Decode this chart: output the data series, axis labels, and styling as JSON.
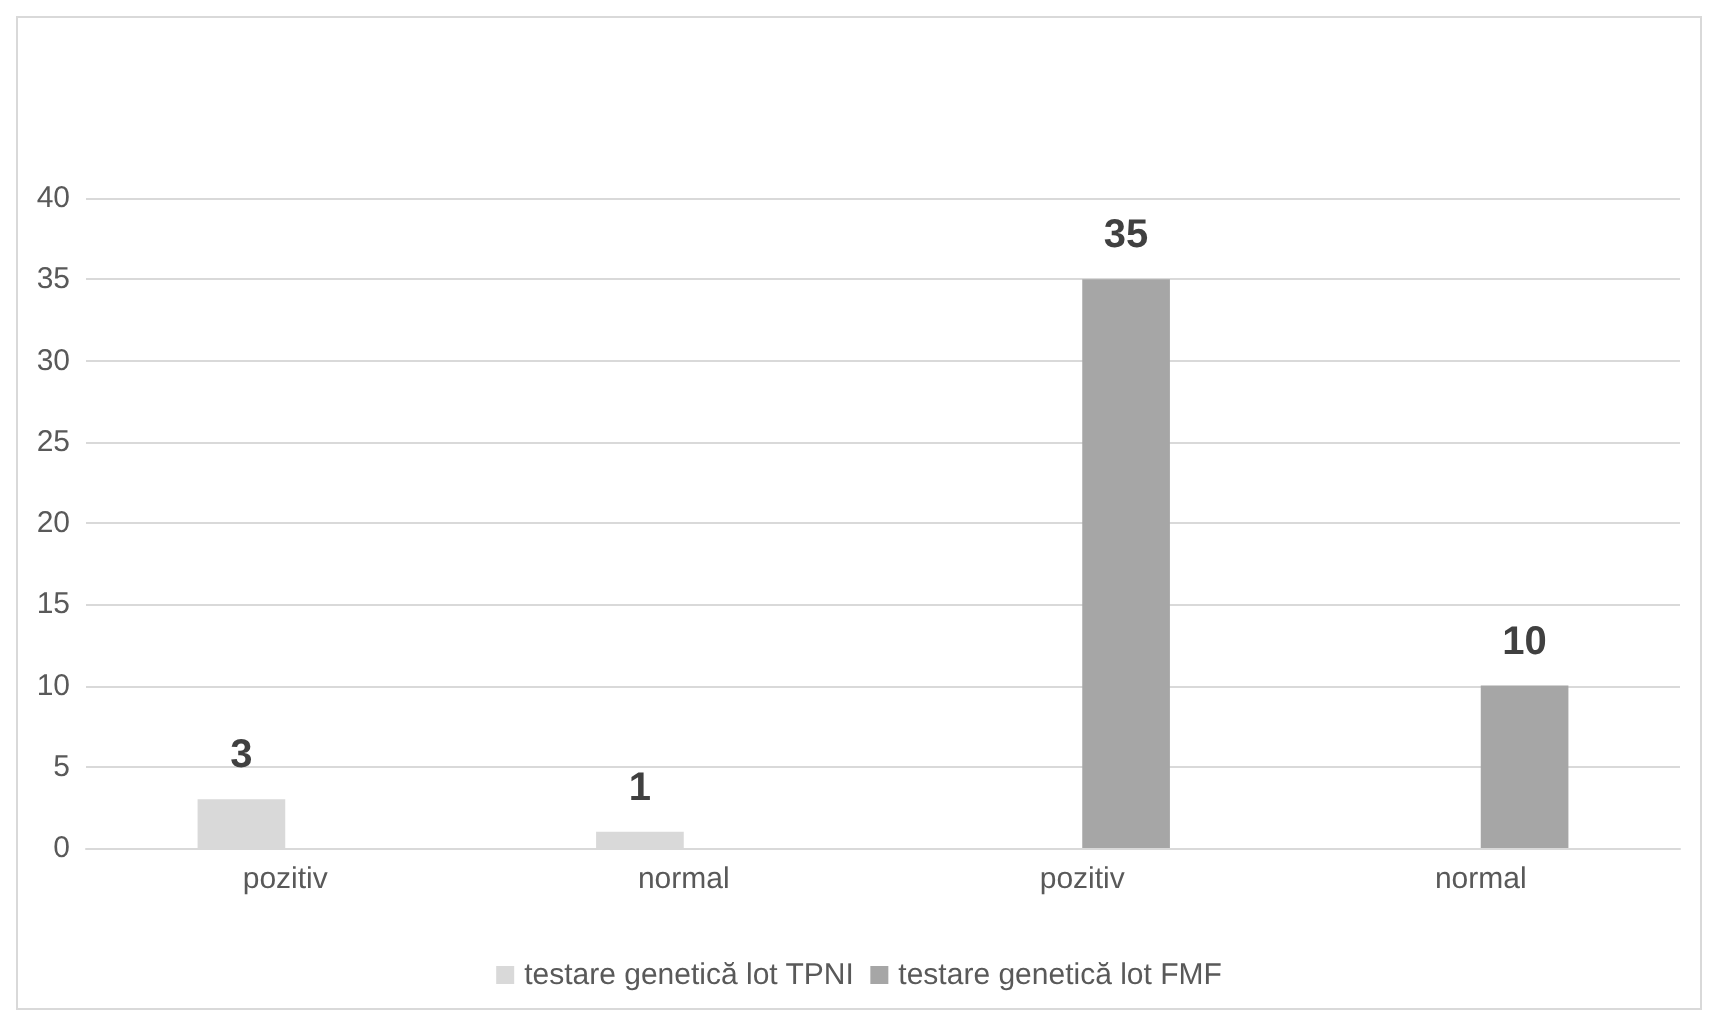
{
  "chart_data": {
    "type": "bar",
    "categories": [
      "pozitiv",
      "normal",
      "pozitiv",
      "normal"
    ],
    "series": [
      {
        "name": "testare genetică lot TPNI",
        "color": "#d9d9d9",
        "values": [
          3,
          1,
          null,
          null
        ]
      },
      {
        "name": "testare genetică lot FMF",
        "color": "#a6a6a6",
        "values": [
          null,
          null,
          35,
          10
        ]
      }
    ],
    "ylim": [
      0,
      40
    ],
    "yticks": [
      0,
      5,
      10,
      15,
      20,
      25,
      30,
      35,
      40
    ],
    "grid": "y",
    "legend": "bottom",
    "data_labels": true
  }
}
